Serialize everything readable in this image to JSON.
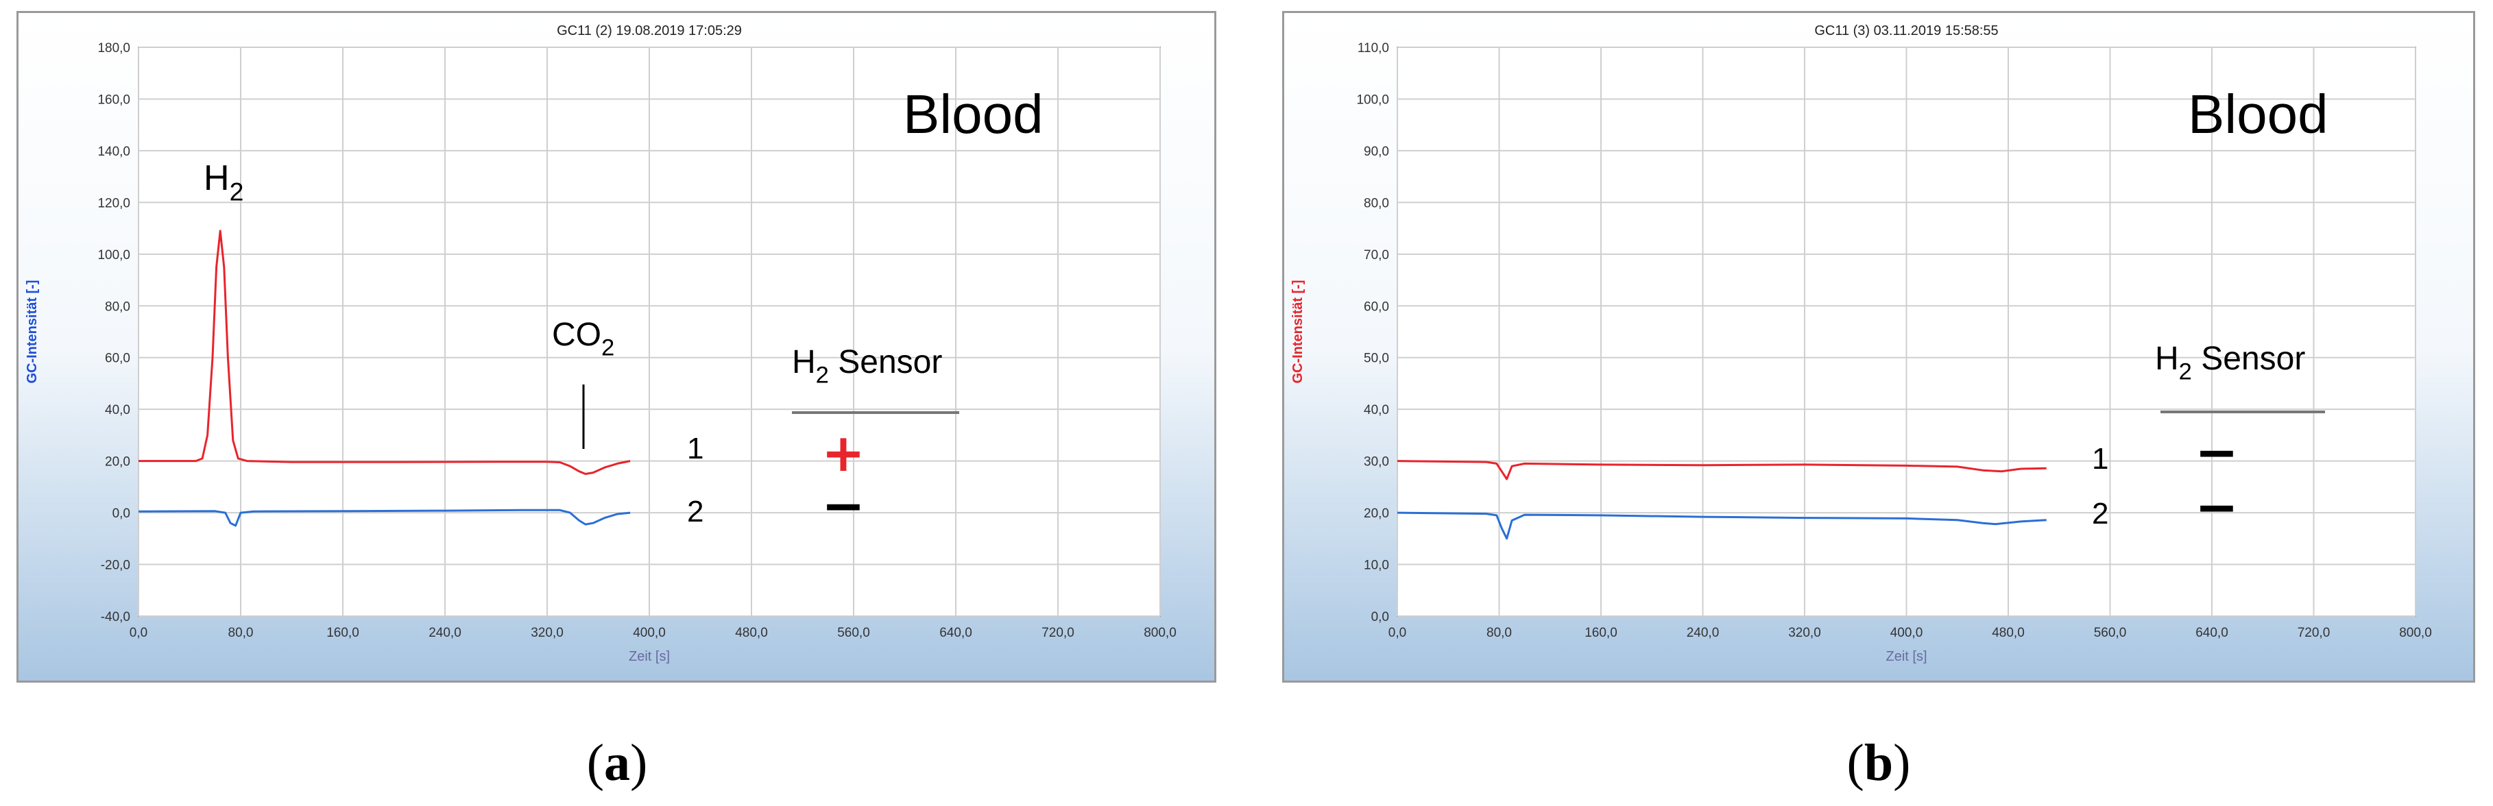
{
  "chart_data": [
    {
      "type": "line",
      "title": "GC11 (2)        19.08.2019 17:05:29",
      "xlabel": "Zeit [s]",
      "ylabel": "GC-Intensität [-]",
      "ylabel_color": "#1f4fd6",
      "xlim": [
        0,
        800
      ],
      "ylim": [
        -40,
        180
      ],
      "xticks": [
        "0,0",
        "80,0",
        "160,0",
        "240,0",
        "320,0",
        "400,0",
        "480,0",
        "560,0",
        "640,0",
        "720,0",
        "800,0"
      ],
      "yticks": [
        "-40,0",
        "-20,0",
        "0,0",
        "20,0",
        "40,0",
        "60,0",
        "80,0",
        "100,0",
        "120,0",
        "140,0",
        "160,0",
        "180,0"
      ],
      "grid": true,
      "series": [
        {
          "color": "#e8242c",
          "x": [
            0,
            45,
            50,
            54,
            58,
            61,
            64,
            67,
            70,
            74,
            78,
            85,
            120,
            200,
            280,
            320,
            330,
            338,
            345,
            350,
            356,
            365,
            375,
            385
          ],
          "y": [
            20,
            20,
            21,
            30,
            60,
            95,
            109,
            95,
            60,
            28,
            21,
            20,
            19.6,
            19.6,
            19.7,
            19.7,
            19.5,
            18,
            16,
            15,
            15.5,
            17.5,
            19,
            20
          ]
        },
        {
          "color": "#2a6fd6",
          "x": [
            0,
            60,
            68,
            72,
            76,
            80,
            90,
            160,
            240,
            300,
            330,
            338,
            345,
            350,
            356,
            365,
            375,
            385
          ],
          "y": [
            0.5,
            0.6,
            0,
            -4,
            -5,
            0,
            0.5,
            0.6,
            0.8,
            1,
            1,
            0,
            -3,
            -4.5,
            -4,
            -2,
            -0.5,
            0
          ]
        }
      ],
      "annotations": {
        "blood": "Blood",
        "h2": "H",
        "h2_sub": "2",
        "co2": "CO",
        "co2_sub": "2",
        "sensor": "H",
        "sensor_sub": "2",
        "sensor_word": " Sensor",
        "row1": "1",
        "row2": "2",
        "result1": "+",
        "result2": "−",
        "result1_color": "#e8242c",
        "result2_color": "#000000"
      },
      "caption_letter": "a"
    },
    {
      "type": "line",
      "title": "GC11 (3)        03.11.2019 15:58:55",
      "xlabel": "Zeit [s]",
      "ylabel": "GC-Intensität [-]",
      "ylabel_color": "#e8242c",
      "xlim": [
        0,
        800
      ],
      "ylim": [
        0,
        110
      ],
      "xticks": [
        "0,0",
        "80,0",
        "160,0",
        "240,0",
        "320,0",
        "400,0",
        "480,0",
        "560,0",
        "640,0",
        "720,0",
        "800,0"
      ],
      "yticks": [
        "0,0",
        "10,0",
        "20,0",
        "30,0",
        "40,0",
        "50,0",
        "60,0",
        "70,0",
        "80,0",
        "90,0",
        "100,0",
        "110,0"
      ],
      "grid": true,
      "series": [
        {
          "color": "#e8242c",
          "x": [
            0,
            70,
            78,
            82,
            86,
            90,
            100,
            160,
            240,
            320,
            400,
            440,
            460,
            475,
            490,
            510
          ],
          "y": [
            30,
            29.8,
            29.5,
            28,
            26.5,
            29,
            29.5,
            29.3,
            29.2,
            29.3,
            29.1,
            28.9,
            28.2,
            28,
            28.5,
            28.6
          ]
        },
        {
          "color": "#2a6fd6",
          "x": [
            0,
            70,
            78,
            82,
            86,
            90,
            100,
            160,
            240,
            320,
            400,
            440,
            460,
            470,
            490,
            510
          ],
          "y": [
            20,
            19.8,
            19.5,
            17,
            15,
            18.5,
            19.6,
            19.5,
            19.2,
            19,
            18.9,
            18.6,
            18,
            17.8,
            18.3,
            18.6
          ]
        }
      ],
      "annotations": {
        "blood": "Blood",
        "sensor": "H",
        "sensor_sub": "2",
        "sensor_word": " Sensor",
        "row1": "1",
        "row2": "2",
        "result1": "−",
        "result2": "−",
        "result1_color": "#000000",
        "result2_color": "#000000"
      },
      "caption_letter": "b"
    }
  ]
}
